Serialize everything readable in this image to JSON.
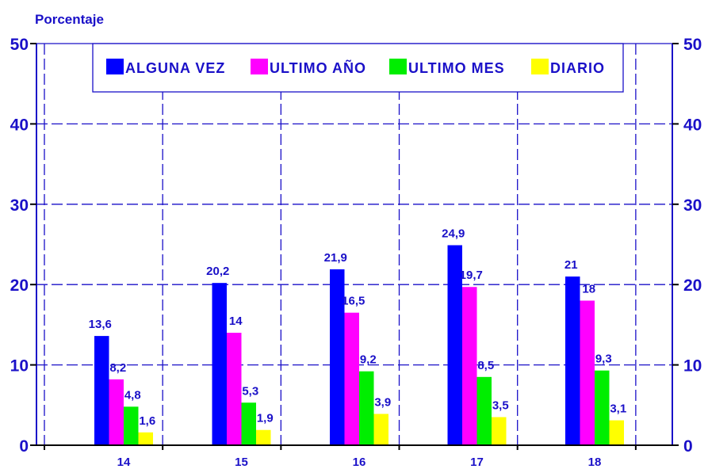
{
  "chart_data": {
    "type": "bar",
    "ylabel": "Porcentaje",
    "xlabel": "",
    "ylim": [
      0,
      50
    ],
    "yticks": [
      0,
      10,
      20,
      30,
      40,
      50
    ],
    "categories": [
      "14",
      "15",
      "16",
      "17",
      "18"
    ],
    "series": [
      {
        "name": "ALGUNA VEZ",
        "color": "#0000ff",
        "values": [
          13.6,
          20.2,
          21.9,
          24.9,
          21
        ],
        "labels": [
          "13,6",
          "20,2",
          "21,9",
          "24,9",
          "21"
        ]
      },
      {
        "name": "ULTIMO AÑO",
        "color": "#ff00ff",
        "values": [
          8.2,
          14,
          16.5,
          19.7,
          18
        ],
        "labels": [
          "8,2",
          "14",
          "16,5",
          "19,7",
          "18"
        ]
      },
      {
        "name": "ULTIMO MES",
        "color": "#00ee00",
        "values": [
          4.8,
          5.3,
          9.2,
          8.5,
          9.3
        ],
        "labels": [
          "4,8",
          "5,3",
          "9,2",
          "8,5",
          "9,3"
        ]
      },
      {
        "name": "DIARIO",
        "color": "#ffff00",
        "values": [
          1.6,
          1.9,
          3.9,
          3.5,
          3.1
        ],
        "labels": [
          "1,6",
          "1,9",
          "3,9",
          "3,5",
          "3,1"
        ]
      }
    ],
    "legend": "top",
    "grid": true,
    "text_color": "#1a10c8",
    "grid_color": "#1a10c8"
  }
}
